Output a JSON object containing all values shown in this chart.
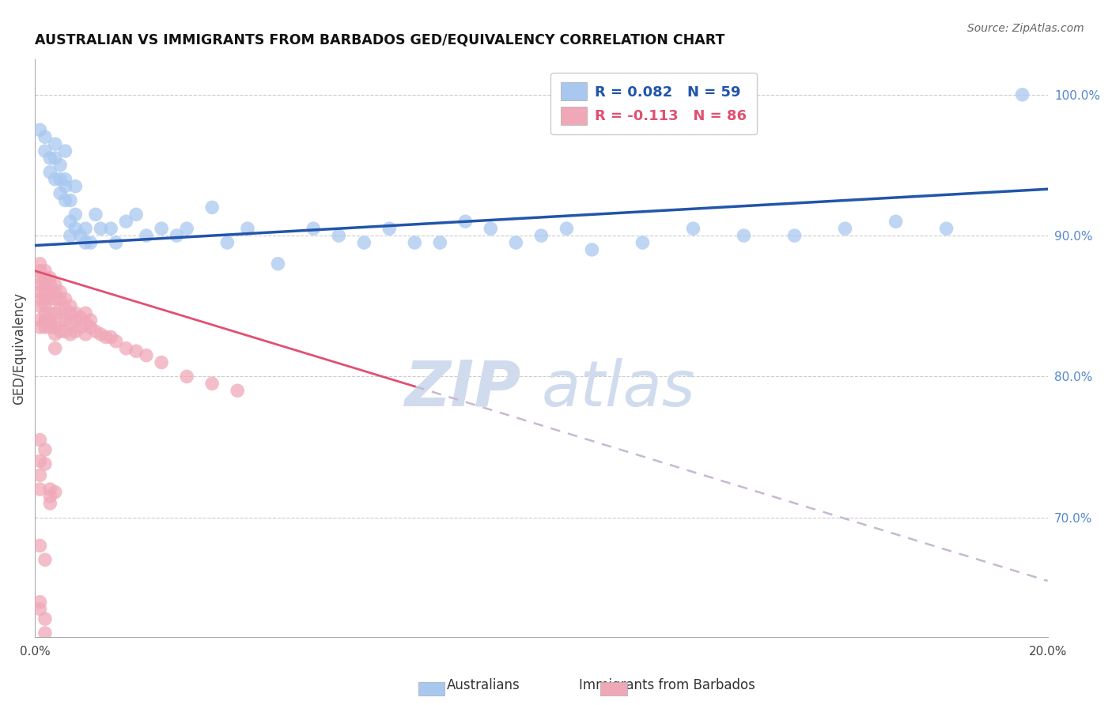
{
  "title": "AUSTRALIAN VS IMMIGRANTS FROM BARBADOS GED/EQUIVALENCY CORRELATION CHART",
  "source": "Source: ZipAtlas.com",
  "ylabel": "GED/Equivalency",
  "xlim": [
    0.0,
    0.2
  ],
  "ylim": [
    0.615,
    1.025
  ],
  "x_ticks": [
    0.0,
    0.04,
    0.08,
    0.12,
    0.16,
    0.2
  ],
  "x_tick_labels": [
    "0.0%",
    "",
    "",
    "",
    "",
    "20.0%"
  ],
  "y_ticks_right": [
    1.0,
    0.9,
    0.8,
    0.7
  ],
  "y_tick_labels_right": [
    "100.0%",
    "90.0%",
    "80.0%",
    "70.0%"
  ],
  "legend_r_australian": "R = 0.082",
  "legend_n_australian": "N = 59",
  "legend_r_barbados": "R = -0.113",
  "legend_n_barbados": "N = 86",
  "color_australian": "#A8C8F0",
  "color_barbados": "#F0A8B8",
  "color_line_australian": "#2255AA",
  "color_line_barbados": "#E05070",
  "color_line_dashed": "#C8B8D0",
  "watermark_color": "#D0DCEE",
  "aus_line_x0": 0.0,
  "aus_line_y0": 0.893,
  "aus_line_x1": 0.2,
  "aus_line_y1": 0.933,
  "bar_line_solid_x0": 0.0,
  "bar_line_solid_y0": 0.875,
  "bar_line_solid_x1": 0.075,
  "bar_line_solid_y1": 0.793,
  "bar_line_dash_x0": 0.075,
  "bar_line_dash_y0": 0.793,
  "bar_line_dash_x1": 0.2,
  "bar_line_dash_y1": 0.655,
  "australian_x": [
    0.001,
    0.002,
    0.002,
    0.003,
    0.003,
    0.004,
    0.004,
    0.004,
    0.005,
    0.005,
    0.005,
    0.006,
    0.006,
    0.006,
    0.006,
    0.007,
    0.007,
    0.007,
    0.008,
    0.008,
    0.008,
    0.009,
    0.01,
    0.01,
    0.011,
    0.012,
    0.013,
    0.015,
    0.016,
    0.018,
    0.02,
    0.022,
    0.025,
    0.028,
    0.03,
    0.035,
    0.038,
    0.042,
    0.048,
    0.055,
    0.06,
    0.065,
    0.07,
    0.075,
    0.08,
    0.085,
    0.09,
    0.095,
    0.1,
    0.105,
    0.11,
    0.12,
    0.13,
    0.14,
    0.15,
    0.16,
    0.17,
    0.18,
    0.195
  ],
  "australian_y": [
    0.975,
    0.97,
    0.96,
    0.945,
    0.955,
    0.965,
    0.955,
    0.94,
    0.95,
    0.94,
    0.93,
    0.925,
    0.94,
    0.935,
    0.96,
    0.9,
    0.91,
    0.925,
    0.905,
    0.915,
    0.935,
    0.9,
    0.895,
    0.905,
    0.895,
    0.915,
    0.905,
    0.905,
    0.895,
    0.91,
    0.915,
    0.9,
    0.905,
    0.9,
    0.905,
    0.92,
    0.895,
    0.905,
    0.88,
    0.905,
    0.9,
    0.895,
    0.905,
    0.895,
    0.895,
    0.91,
    0.905,
    0.895,
    0.9,
    0.905,
    0.89,
    0.895,
    0.905,
    0.9,
    0.9,
    0.905,
    0.91,
    0.905,
    1.0
  ],
  "barbados_x": [
    0.001,
    0.001,
    0.001,
    0.001,
    0.001,
    0.001,
    0.001,
    0.001,
    0.001,
    0.002,
    0.002,
    0.002,
    0.002,
    0.002,
    0.002,
    0.002,
    0.002,
    0.002,
    0.003,
    0.003,
    0.003,
    0.003,
    0.003,
    0.003,
    0.003,
    0.004,
    0.004,
    0.004,
    0.004,
    0.004,
    0.005,
    0.005,
    0.005,
    0.005,
    0.005,
    0.006,
    0.006,
    0.006,
    0.006,
    0.007,
    0.007,
    0.007,
    0.007,
    0.008,
    0.008,
    0.008,
    0.009,
    0.009,
    0.01,
    0.01,
    0.01,
    0.011,
    0.011,
    0.012,
    0.013,
    0.014,
    0.015,
    0.016,
    0.018,
    0.02,
    0.022,
    0.025,
    0.03,
    0.035,
    0.04,
    0.002,
    0.003,
    0.004,
    0.004,
    0.001,
    0.001,
    0.001,
    0.001,
    0.002,
    0.002,
    0.003,
    0.003,
    0.004,
    0.001,
    0.002,
    0.001,
    0.001,
    0.002,
    0.002,
    0.003
  ],
  "barbados_y": [
    0.87,
    0.86,
    0.875,
    0.855,
    0.865,
    0.85,
    0.84,
    0.835,
    0.88,
    0.87,
    0.865,
    0.855,
    0.845,
    0.86,
    0.875,
    0.85,
    0.84,
    0.835,
    0.865,
    0.86,
    0.855,
    0.845,
    0.84,
    0.87,
    0.835,
    0.86,
    0.855,
    0.845,
    0.835,
    0.865,
    0.855,
    0.848,
    0.84,
    0.832,
    0.86,
    0.848,
    0.84,
    0.832,
    0.855,
    0.845,
    0.838,
    0.83,
    0.85,
    0.84,
    0.832,
    0.845,
    0.835,
    0.842,
    0.83,
    0.838,
    0.845,
    0.835,
    0.84,
    0.832,
    0.83,
    0.828,
    0.828,
    0.825,
    0.82,
    0.818,
    0.815,
    0.81,
    0.8,
    0.795,
    0.79,
    0.84,
    0.838,
    0.83,
    0.82,
    0.755,
    0.74,
    0.73,
    0.72,
    0.748,
    0.738,
    0.72,
    0.71,
    0.718,
    0.68,
    0.67,
    0.64,
    0.635,
    0.628,
    0.618,
    0.715
  ]
}
